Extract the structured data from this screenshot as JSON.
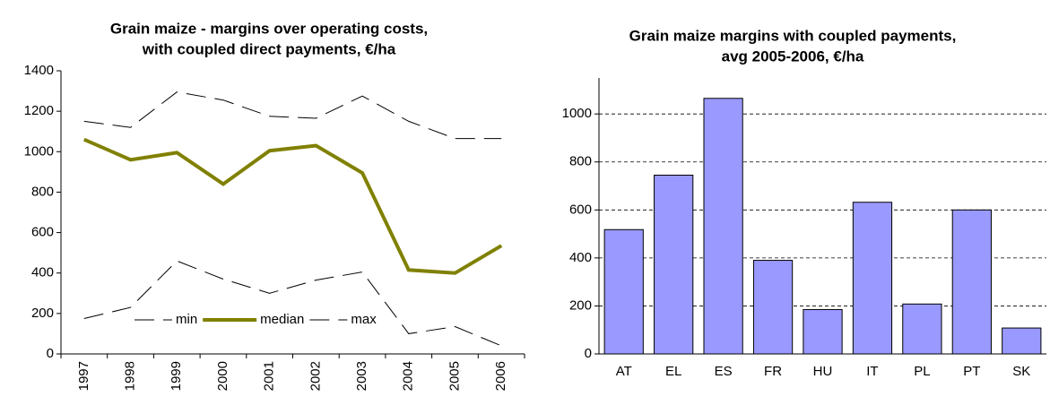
{
  "chart_data": [
    {
      "type": "line",
      "title": [
        "Grain maize - margins over operating costs,",
        "with coupled direct payments, €/ha"
      ],
      "categories": [
        "1997",
        "1998",
        "1999",
        "2000",
        "2001",
        "2002",
        "2003",
        "2004",
        "2005",
        "2006"
      ],
      "series": [
        {
          "name": "min",
          "color": "#000000",
          "dashed": true,
          "values": [
            175,
            230,
            460,
            370,
            300,
            365,
            405,
            100,
            135,
            40
          ]
        },
        {
          "name": "median",
          "color": "#808000",
          "dashed": false,
          "values": [
            1060,
            960,
            995,
            840,
            1005,
            1030,
            895,
            415,
            400,
            535
          ]
        },
        {
          "name": "max",
          "color": "#000000",
          "dashed": true,
          "values": [
            1150,
            1120,
            1295,
            1255,
            1175,
            1165,
            1275,
            1150,
            1065,
            1065
          ]
        }
      ],
      "ylim": [
        0,
        1400
      ],
      "yticks": [
        0,
        200,
        400,
        600,
        800,
        1000,
        1200,
        1400
      ],
      "grid": false,
      "legend": "bottom"
    },
    {
      "type": "bar",
      "title": [
        "Grain maize margins with coupled payments,",
        "avg 2005-2006, €/ha"
      ],
      "categories": [
        "AT",
        "EL",
        "ES",
        "FR",
        "HU",
        "IT",
        "PL",
        "PT",
        "SK"
      ],
      "values": [
        518,
        745,
        1065,
        390,
        185,
        632,
        208,
        600,
        108
      ],
      "color": "#9999ff",
      "ylim": [
        0,
        1150
      ],
      "yticks": [
        0,
        200,
        400,
        600,
        800,
        1000
      ],
      "grid": true
    }
  ]
}
